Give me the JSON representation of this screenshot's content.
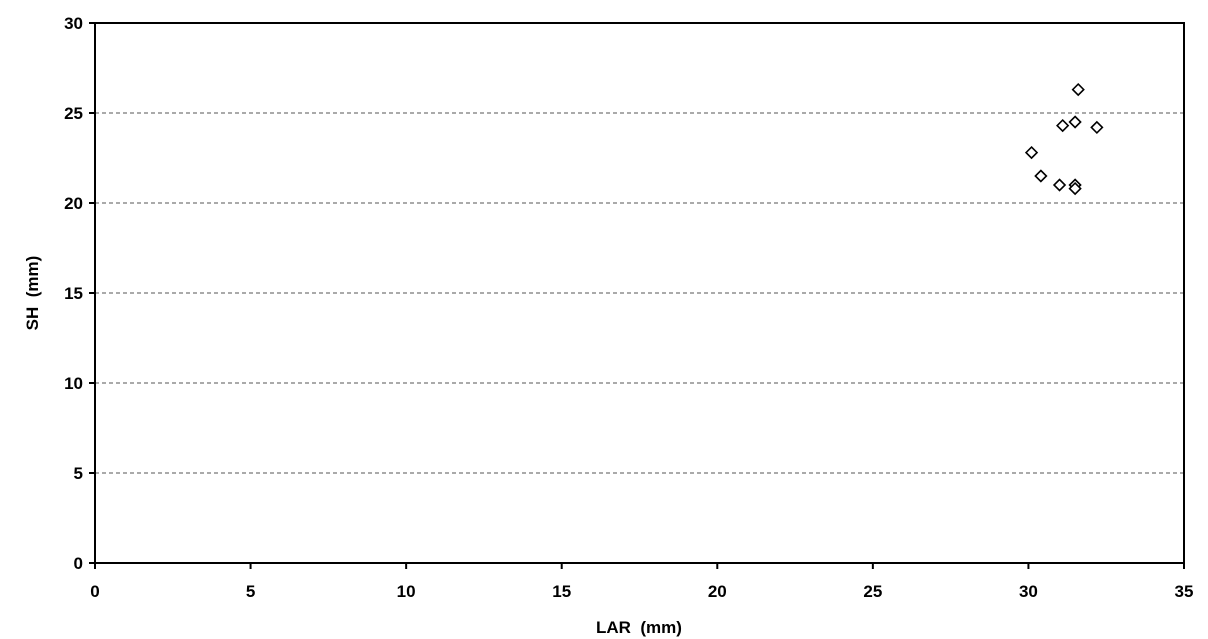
{
  "chart_data": {
    "type": "scatter",
    "xlabel": "LAR  (mm)",
    "ylabel": "SH  (mm)",
    "xlim": [
      0,
      35
    ],
    "ylim": [
      0,
      30
    ],
    "xticks": [
      0,
      5,
      10,
      15,
      20,
      25,
      30,
      35
    ],
    "yticks": [
      0,
      5,
      10,
      15,
      20,
      25,
      30
    ],
    "grid": "horizontal-dashed",
    "marker": "diamond-open",
    "x": [
      30.1,
      30.4,
      31.0,
      31.1,
      31.5,
      31.5,
      31.5,
      31.6,
      32.2
    ],
    "y": [
      22.8,
      21.5,
      21.0,
      24.3,
      24.5,
      21.0,
      20.8,
      26.3,
      24.2
    ]
  }
}
